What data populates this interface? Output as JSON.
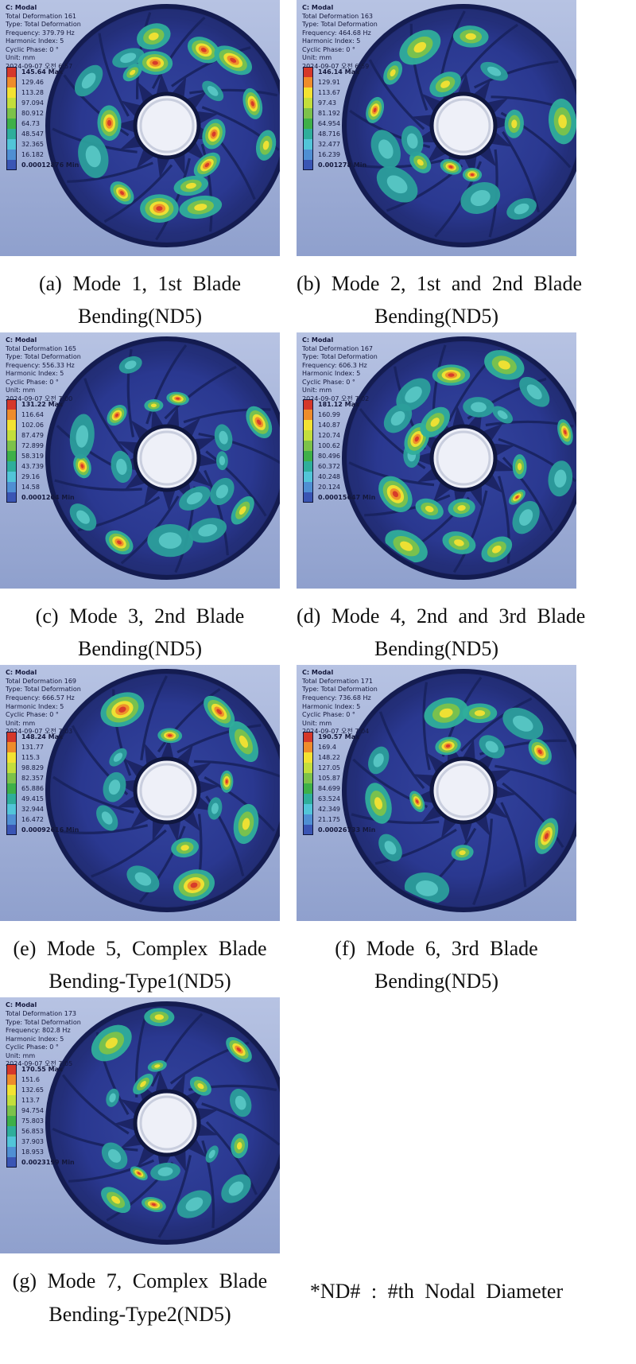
{
  "figure": {
    "footnote": "*ND# : #th Nodal Diameter",
    "legend_colors": [
      "#d5382a",
      "#ee8c2b",
      "#f3e232",
      "#c3de3c",
      "#7cc24a",
      "#3eb049",
      "#2fae9b",
      "#52c5d8",
      "#4f8fd3",
      "#3a55b4"
    ],
    "panels": [
      {
        "id": "a",
        "header_title": "C: Modal",
        "header_lines": [
          "Total Deformation 161",
          "Type: Total Deformation",
          "Frequency: 379.79 Hz",
          "Harmonic Index: 5",
          "Cyclic Phase: 0 °",
          "Unit: mm",
          "2024-09-07 오전 6:57"
        ],
        "legend_labels": [
          "145.64 Max",
          "129.46",
          "113.28",
          "97.094",
          "80.912",
          "64.73",
          "48.547",
          "32.365",
          "16.182",
          "0.00012876 Min"
        ],
        "caption_line1": "(a) Mode 1, 1st Blade",
        "caption_line2": "Bending(ND5)"
      },
      {
        "id": "b",
        "header_title": "C: Modal",
        "header_lines": [
          "Total Deformation 163",
          "Type: Total Deformation",
          "Frequency: 464.68 Hz",
          "Harmonic Index: 5",
          "Cyclic Phase: 0 °",
          "Unit: mm",
          "2024-09-07 오전 6:59"
        ],
        "legend_labels": [
          "146.14 Max",
          "129.91",
          "113.67",
          "97.43",
          "81.192",
          "64.954",
          "48.716",
          "32.477",
          "16.239",
          "0.001278 Min"
        ],
        "caption_line1": "(b) Mode 2, 1st and 2nd Blade",
        "caption_line2": "Bending(ND5)"
      },
      {
        "id": "c",
        "header_title": "C: Modal",
        "header_lines": [
          "Total Deformation 165",
          "Type: Total Deformation",
          "Frequency: 556.33 Hz",
          "Harmonic Index: 5",
          "Cyclic Phase: 0 °",
          "Unit: mm",
          "2024-09-07 오전 7:00"
        ],
        "legend_labels": [
          "131.22 Max",
          "116.64",
          "102.06",
          "87.479",
          "72.899",
          "58.319",
          "43.739",
          "29.16",
          "14.58",
          "0.0001204 Min"
        ],
        "caption_line1": "(c) Mode 3, 2nd Blade",
        "caption_line2": "Bending(ND5)"
      },
      {
        "id": "d",
        "header_title": "C: Modal",
        "header_lines": [
          "Total Deformation 167",
          "Type: Total Deformation",
          "Frequency: 606.3 Hz",
          "Harmonic Index: 5",
          "Cyclic Phase: 0 °",
          "Unit: mm",
          "2024-09-07 오전 7:02"
        ],
        "legend_labels": [
          "181.12 Max",
          "160.99",
          "140.87",
          "120.74",
          "100.62",
          "80.496",
          "60.372",
          "40.248",
          "20.124",
          "0.00015647 Min"
        ],
        "caption_line1": "(d) Mode 4, 2nd and 3rd Blade",
        "caption_line2": "Bending(ND5)"
      },
      {
        "id": "e",
        "header_title": "C: Modal",
        "header_lines": [
          "Total Deformation 169",
          "Type: Total Deformation",
          "Frequency: 666.57 Hz",
          "Harmonic Index: 5",
          "Cyclic Phase: 0 °",
          "Unit: mm",
          "2024-09-07 오전 7:03"
        ],
        "legend_labels": [
          "148.24 Max",
          "131.77",
          "115.3",
          "98.829",
          "82.357",
          "65.886",
          "49.415",
          "32.944",
          "16.472",
          "0.00092616 Min"
        ],
        "caption_line1": "(e) Mode 5, Complex Blade",
        "caption_line2": "Bending-Type1(ND5)"
      },
      {
        "id": "f",
        "header_title": "C: Modal",
        "header_lines": [
          "Total Deformation 171",
          "Type: Total Deformation",
          "Frequency: 736.68 Hz",
          "Harmonic Index: 5",
          "Cyclic Phase: 0 °",
          "Unit: mm",
          "2024-09-07 오전 7:04"
        ],
        "legend_labels": [
          "190.57 Max",
          "169.4",
          "148.22",
          "127.05",
          "105.87",
          "84.699",
          "63.524",
          "42.349",
          "21.175",
          "0.00026733 Min"
        ],
        "caption_line1": "(f) Mode 6, 3rd Blade",
        "caption_line2": "Bending(ND5)"
      },
      {
        "id": "g",
        "header_title": "C: Modal",
        "header_lines": [
          "Total Deformation 173",
          "Type: Total Deformation",
          "Frequency: 802.8 Hz",
          "Harmonic Index: 5",
          "Cyclic Phase: 0 °",
          "Unit: mm",
          "2024-09-07 오전 7:05"
        ],
        "legend_labels": [
          "170.55 Max",
          "151.6",
          "132.65",
          "113.7",
          "94.754",
          "75.803",
          "56.853",
          "37.903",
          "18.953",
          "0.0023199 Min"
        ],
        "caption_line1": "(g) Mode 7, Complex Blade",
        "caption_line2": "Bending-Type2(ND5)"
      }
    ]
  }
}
